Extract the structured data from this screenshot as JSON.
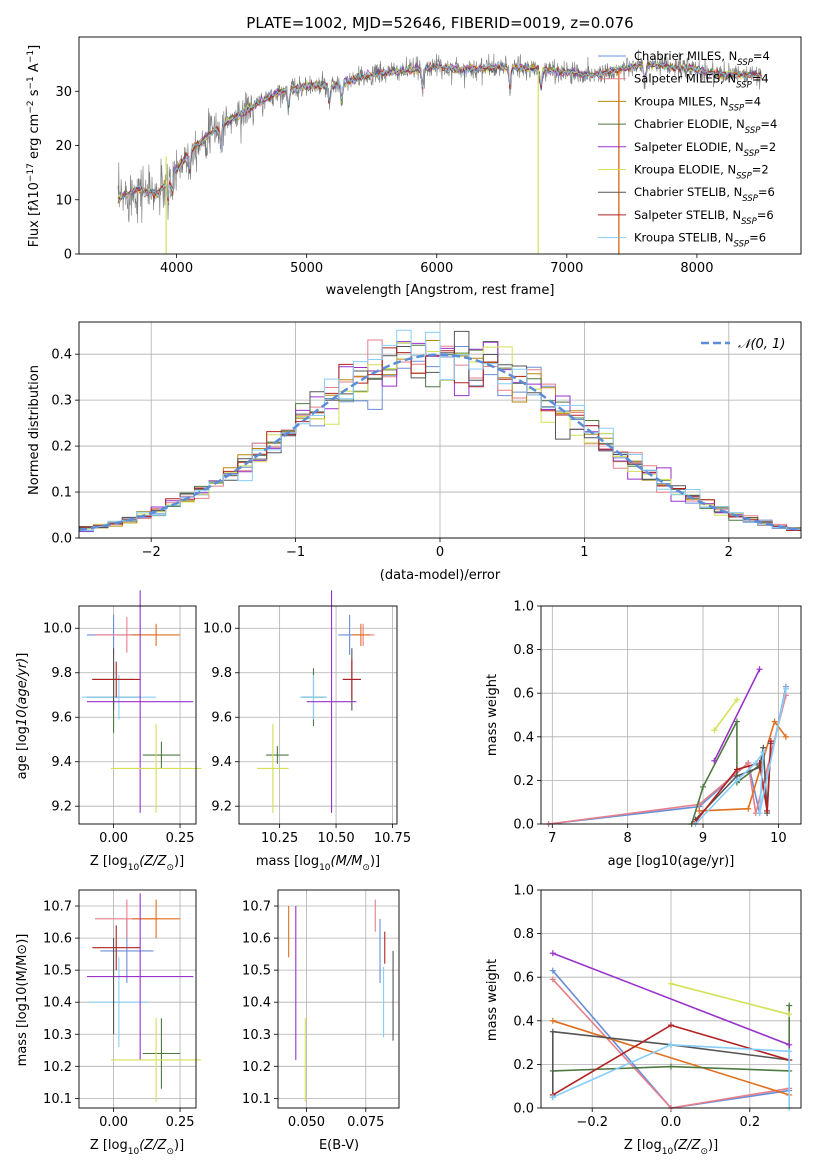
{
  "chart_data": [
    {
      "id": "spectrum",
      "type": "line",
      "title": "PLATE=1002, MJD=52646, FIBERID=0019, z=0.076",
      "xlabel": "wavelength [Angstrom, rest frame]",
      "ylabel_parts": [
        "Flux [f",
        "λ",
        "10",
        "−17",
        " erg cm",
        "−2",
        " s",
        "−1",
        " A",
        "−1",
        "]"
      ],
      "xlim": [
        3250,
        8800
      ],
      "ylim": [
        0,
        40
      ],
      "xticks": [
        4000,
        5000,
        6000,
        7000,
        8000
      ],
      "yticks": [
        0,
        10,
        20,
        30
      ],
      "data_envelope": {
        "x": [
          3550,
          3700,
          3850,
          3950,
          4100,
          4300,
          4500,
          4800,
          5000,
          5200,
          5500,
          5800,
          6000,
          6200,
          6500,
          6800,
          7000,
          7200,
          7400,
          7600,
          7800,
          8000,
          8200,
          8400,
          8500
        ],
        "y": [
          10,
          12,
          11,
          14,
          19,
          23,
          26,
          30,
          31,
          31,
          33,
          34,
          34.5,
          34,
          34.5,
          34,
          33.5,
          33,
          34,
          35,
          34.5,
          34,
          33,
          33,
          33
        ]
      },
      "legend": [
        {
          "name_main": "Chabrier MILES, N",
          "name_sub": "SSP",
          "name_tail": "=4",
          "color": "#6a8fd8"
        },
        {
          "name_main": "Salpeter MILES, N",
          "name_sub": "SSP",
          "name_tail": "=4",
          "color": "#e87f8a"
        },
        {
          "name_main": "Kroupa MILES, N",
          "name_sub": "SSP",
          "name_tail": "=4",
          "color": "#b8860b"
        },
        {
          "name_main": "Chabrier ELODIE, N",
          "name_sub": "SSP",
          "name_tail": "=4",
          "color": "#4f7942"
        },
        {
          "name_main": "Salpeter ELODIE, N",
          "name_sub": "SSP",
          "name_tail": "=2",
          "color": "#9932cc"
        },
        {
          "name_main": "Kroupa ELODIE, N",
          "name_sub": "SSP",
          "name_tail": "=2",
          "color": "#d4e157"
        },
        {
          "name_main": "Chabrier STELIB, N",
          "name_sub": "SSP",
          "name_tail": "=6",
          "color": "#555555"
        },
        {
          "name_main": "Salpeter STELIB, N",
          "name_sub": "SSP",
          "name_tail": "=6",
          "color": "#b22222"
        },
        {
          "name_main": "Kroupa STELIB, N",
          "name_sub": "SSP",
          "name_tail": "=6",
          "color": "#87cefa"
        }
      ]
    },
    {
      "id": "residuals",
      "type": "histogram",
      "xlabel": "(data-model)/error",
      "ylabel": "Normed distribution",
      "xlim": [
        -2.5,
        2.5
      ],
      "ylim": [
        0,
        0.47
      ],
      "xticks": [
        -2,
        -1,
        0,
        1,
        2
      ],
      "yticks": [
        0.0,
        0.1,
        0.2,
        0.3,
        0.4
      ],
      "legend": {
        "name": "𝒩(0, 1)",
        "color": "#5b8ed6"
      }
    },
    {
      "id": "age_vs_Z",
      "type": "scatter",
      "xlabel_main": "Z [log",
      "xlabel_sub": "10",
      "xlabel_tail": "(Z/Z",
      "ylabel": "age  [log10(age/yr)]",
      "xlim": [
        -0.13,
        0.31
      ],
      "ylim": [
        9.12,
        10.1
      ],
      "xticks": [
        0.0,
        0.25
      ],
      "yticks": [
        9.2,
        9.4,
        9.6,
        9.8,
        10.0
      ],
      "points": [
        {
          "x": 0.0,
          "y": 9.97,
          "xerr": 0.1,
          "yerr": 0.09,
          "color": "#6a8fd8"
        },
        {
          "x": 0.05,
          "y": 9.97,
          "xerr": 0.12,
          "yerr": 0.08,
          "color": "#e87f8a"
        },
        {
          "x": 0.16,
          "y": 9.97,
          "xerr": 0.09,
          "yerr": 0.05,
          "color": "#e07020"
        },
        {
          "x": 0.0,
          "y": 9.69,
          "xerr": 0.1,
          "yerr": 0.16,
          "color": "#4f7942"
        },
        {
          "x": 0.02,
          "y": 9.69,
          "xerr": 0.14,
          "yerr": 0.1,
          "color": "#87cefa"
        },
        {
          "x": 0.18,
          "y": 9.43,
          "xerr": 0.07,
          "yerr": 0.06,
          "color": "#4f7942"
        },
        {
          "x": 0.1,
          "y": 9.67,
          "xerr": 0.2,
          "yerr": 0.5,
          "color": "#9932cc"
        },
        {
          "x": 0.16,
          "y": 9.37,
          "xerr": 0.17,
          "yerr": 0.2,
          "color": "#d4e157"
        },
        {
          "x": 0.0,
          "y": 9.77,
          "xerr": 0.08,
          "yerr": 0.14,
          "color": "#555555"
        },
        {
          "x": 0.01,
          "y": 9.77,
          "xerr": 0.09,
          "yerr": 0.08,
          "color": "#b22222"
        }
      ]
    },
    {
      "id": "age_vs_mass",
      "type": "scatter",
      "xlabel_main": "mass [log",
      "xlabel_sub": "10",
      "xlabel_tail": "(M/M",
      "xlim": [
        10.07,
        10.77
      ],
      "ylim": [
        9.12,
        10.1
      ],
      "xticks": [
        10.25,
        10.5,
        10.75
      ],
      "yticks": [
        9.2,
        9.4,
        9.6,
        9.8,
        10.0
      ],
      "points": [
        {
          "x": 10.56,
          "y": 9.97,
          "xerr": 0.05,
          "yerr": 0.09,
          "color": "#6a8fd8"
        },
        {
          "x": 10.62,
          "y": 9.97,
          "xerr": 0.05,
          "yerr": 0.05,
          "color": "#e87f8a"
        },
        {
          "x": 10.61,
          "y": 9.97,
          "xerr": 0.04,
          "yerr": 0.05,
          "color": "#e07020"
        },
        {
          "x": 10.4,
          "y": 9.69,
          "xerr": 0.05,
          "yerr": 0.13,
          "color": "#4f7942"
        },
        {
          "x": 10.4,
          "y": 9.69,
          "xerr": 0.06,
          "yerr": 0.1,
          "color": "#87cefa"
        },
        {
          "x": 10.24,
          "y": 9.43,
          "xerr": 0.05,
          "yerr": 0.04,
          "color": "#4f7942"
        },
        {
          "x": 10.48,
          "y": 9.67,
          "xerr": 0.11,
          "yerr": 0.5,
          "color": "#9932cc"
        },
        {
          "x": 10.22,
          "y": 9.37,
          "xerr": 0.07,
          "yerr": 0.2,
          "color": "#d4e157"
        },
        {
          "x": 10.57,
          "y": 9.77,
          "xerr": 0.04,
          "yerr": 0.14,
          "color": "#555555"
        },
        {
          "x": 10.57,
          "y": 9.77,
          "xerr": 0.04,
          "yerr": 0.09,
          "color": "#b22222"
        }
      ]
    },
    {
      "id": "weight_vs_age",
      "type": "line",
      "xlabel": "age  [log10(age/yr)]",
      "ylabel": "mass weight",
      "xlim": [
        6.85,
        10.3
      ],
      "ylim": [
        0,
        1.0
      ],
      "xticks": [
        7,
        8,
        9,
        10
      ],
      "yticks": [
        0.0,
        0.2,
        0.4,
        0.6,
        0.8,
        1.0
      ],
      "series": [
        {
          "color": "#6a8fd8",
          "x": [
            6.95,
            8.95,
            9.6,
            9.75,
            10.1
          ],
          "y": [
            0.0,
            0.08,
            0.28,
            0.05,
            0.63
          ]
        },
        {
          "color": "#e87f8a",
          "x": [
            6.95,
            8.95,
            9.6,
            9.7,
            10.1
          ],
          "y": [
            0.0,
            0.09,
            0.28,
            0.05,
            0.59
          ]
        },
        {
          "color": "#e07020",
          "x": [
            8.95,
            9.6,
            9.95,
            10.1
          ],
          "y": [
            0.06,
            0.07,
            0.47,
            0.4
          ]
        },
        {
          "color": "#4f7942",
          "x": [
            8.85,
            9.0,
            9.45,
            9.45,
            9.75
          ],
          "y": [
            0.0,
            0.17,
            0.47,
            0.19,
            0.27
          ]
        },
        {
          "color": "#9932cc",
          "x": [
            9.15,
            9.75
          ],
          "y": [
            0.29,
            0.71
          ]
        },
        {
          "color": "#d4e157",
          "x": [
            9.15,
            9.45
          ],
          "y": [
            0.43,
            0.57
          ]
        },
        {
          "color": "#555555",
          "x": [
            8.9,
            9.45,
            9.75,
            9.8,
            9.85,
            9.9
          ],
          "y": [
            0.02,
            0.22,
            0.26,
            0.35,
            0.05,
            0.37
          ]
        },
        {
          "color": "#b22222",
          "x": [
            8.9,
            9.45,
            9.75,
            9.85,
            9.9
          ],
          "y": [
            0.01,
            0.25,
            0.28,
            0.06,
            0.38
          ]
        },
        {
          "color": "#87cefa",
          "x": [
            8.9,
            9.45,
            9.7,
            9.8,
            9.75,
            10.1
          ],
          "y": [
            0.0,
            0.2,
            0.28,
            0.33,
            0.05,
            0.62
          ]
        }
      ]
    },
    {
      "id": "mass_vs_Z",
      "type": "scatter",
      "xlabel_main": "Z [log",
      "xlabel_sub": "10",
      "xlabel_tail": "(Z/Z",
      "ylabel": "mass [log10(M/M⊙)]",
      "xlim": [
        -0.13,
        0.31
      ],
      "ylim": [
        10.07,
        10.75
      ],
      "xticks": [
        0.0,
        0.25
      ],
      "yticks": [
        10.1,
        10.2,
        10.3,
        10.4,
        10.5,
        10.6,
        10.7
      ],
      "points": [
        {
          "x": 0.05,
          "y": 10.56,
          "xerr": 0.1,
          "yerr": 0.1,
          "color": "#6a8fd8"
        },
        {
          "x": 0.05,
          "y": 10.66,
          "xerr": 0.12,
          "yerr": 0.06,
          "color": "#e87f8a"
        },
        {
          "x": 0.16,
          "y": 10.66,
          "xerr": 0.09,
          "yerr": 0.06,
          "color": "#e07020"
        },
        {
          "x": 0.18,
          "y": 10.24,
          "xerr": 0.07,
          "yerr": 0.11,
          "color": "#4f7942"
        },
        {
          "x": 0.02,
          "y": 10.4,
          "xerr": 0.11,
          "yerr": 0.14,
          "color": "#87cefa"
        },
        {
          "x": 0.1,
          "y": 10.48,
          "xerr": 0.2,
          "yerr": 0.26,
          "color": "#9932cc"
        },
        {
          "x": 0.16,
          "y": 10.22,
          "xerr": 0.17,
          "yerr": 0.13,
          "color": "#d4e157"
        },
        {
          "x": 0.01,
          "y": 10.57,
          "xerr": 0.09,
          "yerr": 0.07,
          "color": "#b22222"
        },
        {
          "x": 0.0,
          "y": 10.45,
          "xerr": 0.0,
          "yerr": 0.15,
          "color": "#555555"
        }
      ]
    },
    {
      "id": "mass_vs_ebv",
      "type": "scatter",
      "xlabel": "E(B-V)",
      "xlim": [
        0.038,
        0.089
      ],
      "ylim": [
        10.07,
        10.75
      ],
      "xticks": [
        0.05,
        0.075
      ],
      "yticks": [
        10.1,
        10.2,
        10.3,
        10.4,
        10.5,
        10.6,
        10.7
      ],
      "points": [
        {
          "x": 0.0425,
          "y": 10.62,
          "xerr": 0.0,
          "yerr": 0.08,
          "color": "#e07020"
        },
        {
          "x": 0.0455,
          "y": 10.46,
          "xerr": 0.0,
          "yerr": 0.24,
          "color": "#9932cc"
        },
        {
          "x": 0.0495,
          "y": 10.22,
          "xerr": 0.0,
          "yerr": 0.13,
          "color": "#d4e157"
        },
        {
          "x": 0.079,
          "y": 10.67,
          "xerr": 0.0,
          "yerr": 0.05,
          "color": "#e87f8a"
        },
        {
          "x": 0.081,
          "y": 10.56,
          "xerr": 0.0,
          "yerr": 0.1,
          "color": "#6a8fd8"
        },
        {
          "x": 0.0825,
          "y": 10.4,
          "xerr": 0.0,
          "yerr": 0.11,
          "color": "#87cefa"
        },
        {
          "x": 0.083,
          "y": 10.57,
          "xerr": 0.0,
          "yerr": 0.05,
          "color": "#b22222"
        },
        {
          "x": 0.0865,
          "y": 10.42,
          "xerr": 0.0,
          "yerr": 0.14,
          "color": "#555555"
        }
      ]
    },
    {
      "id": "weight_vs_Z",
      "type": "line",
      "xlabel_main": "Z [log",
      "xlabel_sub": "10",
      "xlabel_tail": "(Z/Z",
      "ylabel": "mass weight",
      "xlim": [
        -0.33,
        0.33
      ],
      "ylim": [
        0,
        1.0
      ],
      "xticks": [
        -0.2,
        0.0,
        0.2
      ],
      "yticks": [
        0.0,
        0.2,
        0.4,
        0.6,
        0.8,
        1.0
      ],
      "series": [
        {
          "color": "#6a8fd8",
          "x": [
            -0.3,
            0.0,
            0.3
          ],
          "y": [
            0.63,
            0.0,
            0.08
          ]
        },
        {
          "color": "#e87f8a",
          "x": [
            -0.3,
            0.0,
            0.3
          ],
          "y": [
            0.59,
            0.0,
            0.09
          ]
        },
        {
          "color": "#e07020",
          "x": [
            -0.3,
            0.3
          ],
          "y": [
            0.4,
            0.06
          ]
        },
        {
          "color": "#4f7942",
          "x": [
            -0.3,
            0.0,
            0.3,
            0.3
          ],
          "y": [
            0.17,
            0.19,
            0.17,
            0.47
          ]
        },
        {
          "color": "#9932cc",
          "x": [
            -0.3,
            0.3
          ],
          "y": [
            0.71,
            0.29
          ]
        },
        {
          "color": "#d4e157",
          "x": [
            0.0,
            0.3
          ],
          "y": [
            0.57,
            0.43
          ]
        },
        {
          "color": "#555555",
          "x": [
            -0.3,
            -0.3,
            0.0,
            0.3
          ],
          "y": [
            0.05,
            0.35,
            0.29,
            0.22
          ]
        },
        {
          "color": "#b22222",
          "x": [
            -0.3,
            0.0,
            0.3
          ],
          "y": [
            0.06,
            0.38,
            0.22
          ]
        },
        {
          "color": "#87cefa",
          "x": [
            -0.3,
            0.0,
            0.3,
            0.3
          ],
          "y": [
            0.05,
            0.29,
            0.26,
            0.0
          ]
        }
      ]
    }
  ]
}
